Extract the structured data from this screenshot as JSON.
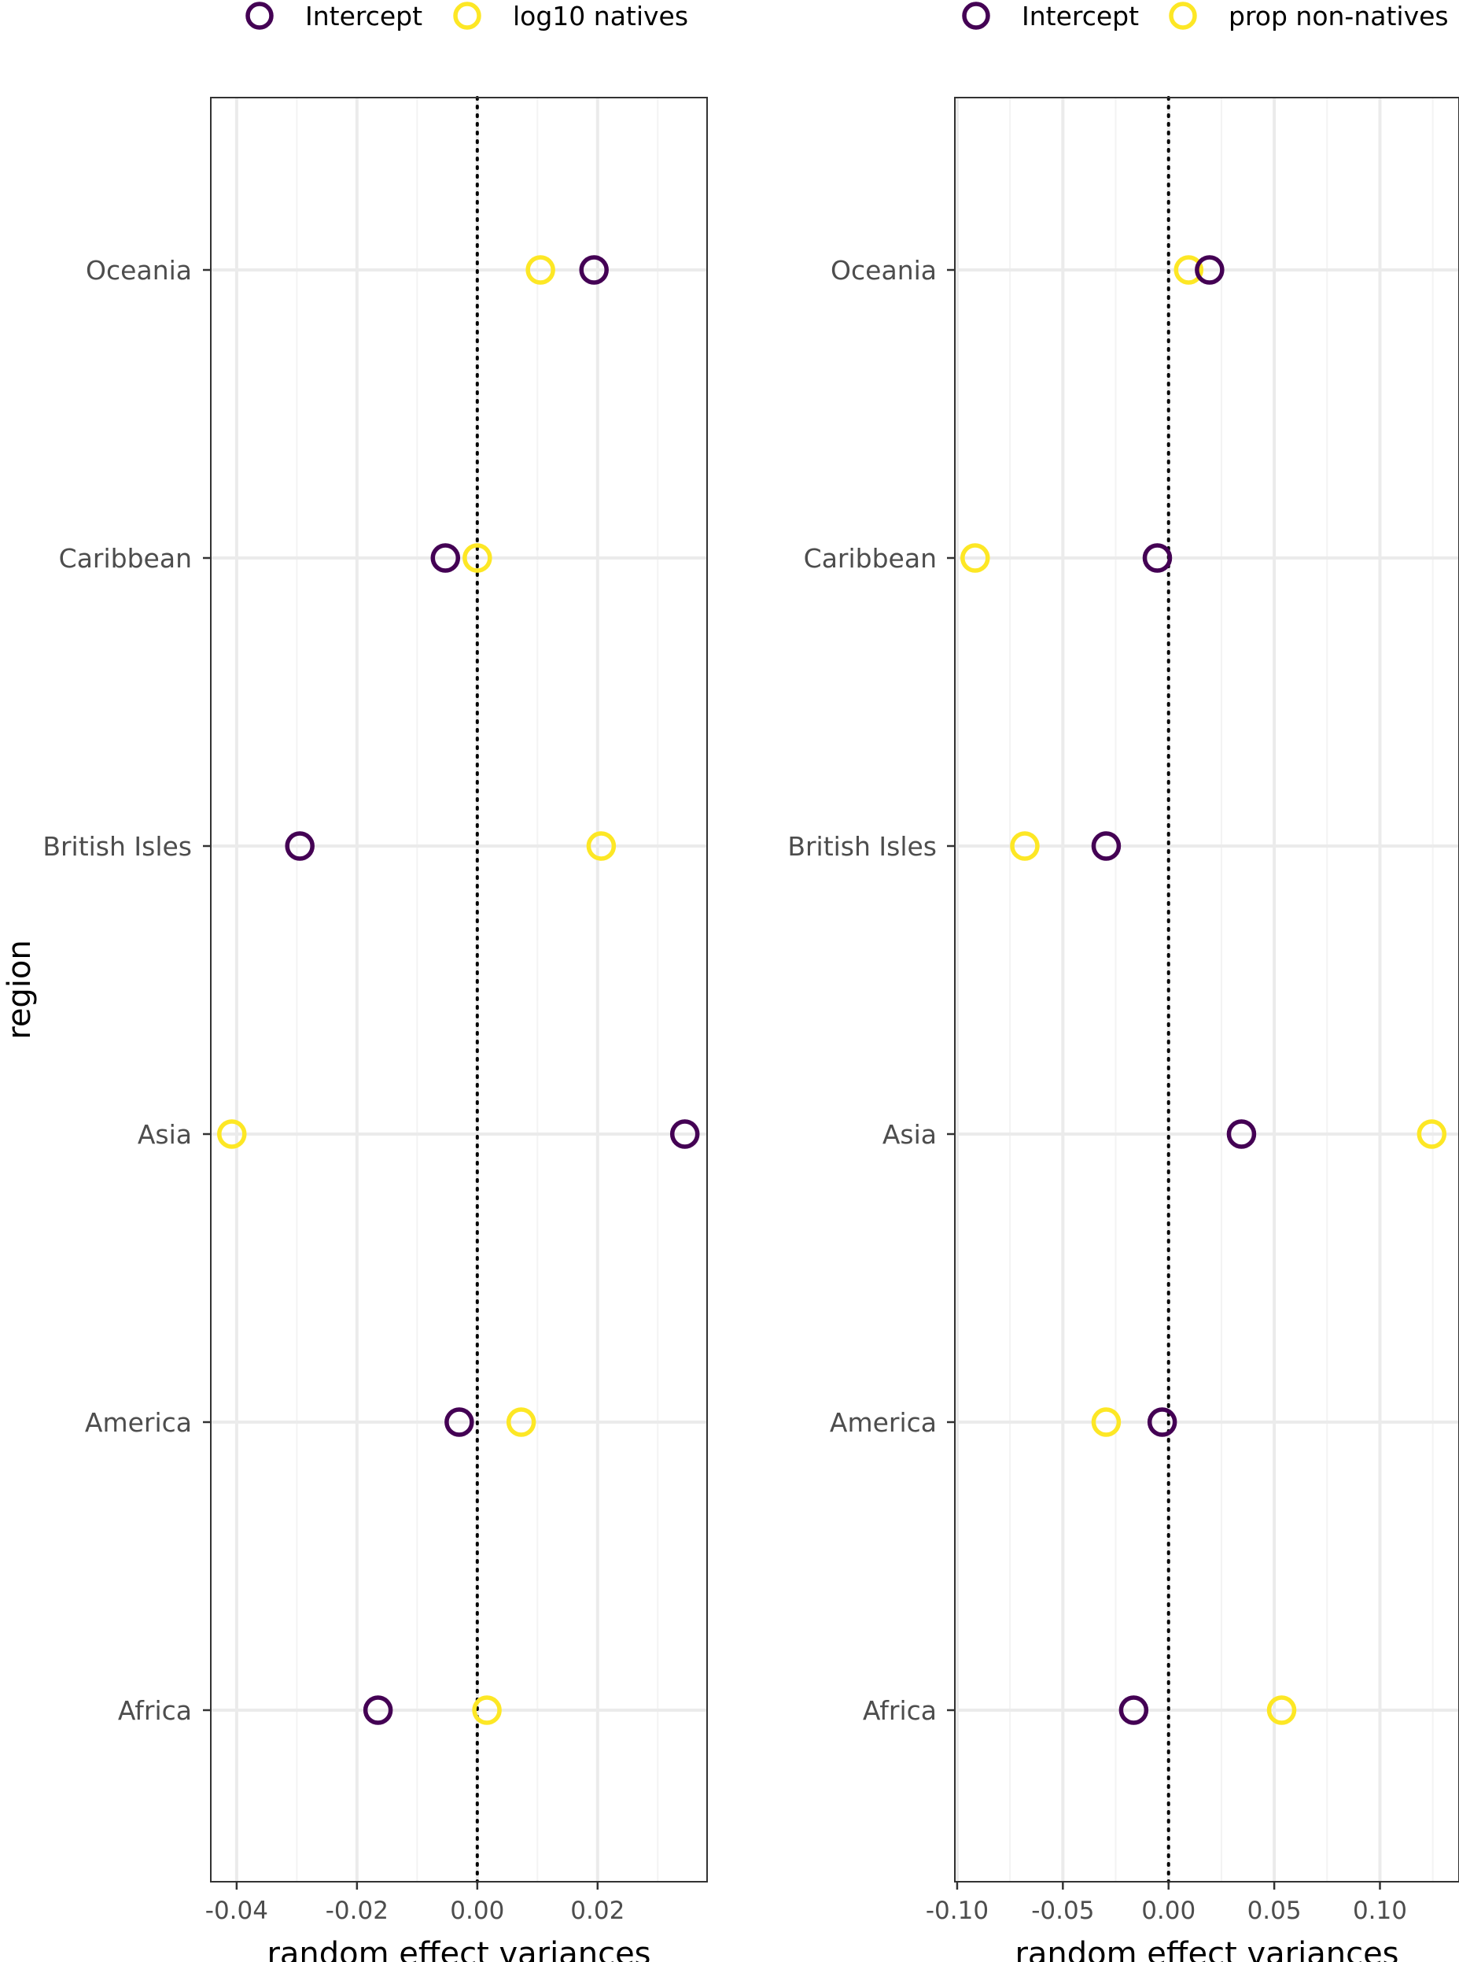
{
  "colors": {
    "intercept": "#440154",
    "slope": "#fde725",
    "grid_major": "#ebebeb",
    "grid_minor": "#f3f3f3",
    "axis_text": "#4d4d4d",
    "panel_border": "#333333"
  },
  "chart_data": [
    {
      "type": "scatter",
      "panel": "left",
      "ylabel": "region",
      "xlabel": "random effect variances",
      "categories": [
        "Africa",
        "America",
        "Asia",
        "British Isles",
        "Caribbean",
        "Oceania"
      ],
      "x_ticks": [
        -0.04,
        -0.02,
        0.0,
        0.02
      ],
      "x_tick_labels": [
        "-0.04",
        "-0.02",
        "0.00",
        "0.02"
      ],
      "x_minor_ticks": [
        -0.03,
        -0.01,
        0.01,
        0.03
      ],
      "xlim": [
        -0.0443,
        0.0382
      ],
      "reference_line_x": 0,
      "grid": true,
      "legend_position": "top",
      "series": [
        {
          "name": "Intercept",
          "color_key": "intercept",
          "values": [
            -0.0165,
            -0.003,
            0.0345,
            -0.0295,
            -0.0053,
            0.0194
          ]
        },
        {
          "name": "log10 natives",
          "color_key": "slope",
          "values": [
            0.0016,
            0.0073,
            -0.0408,
            0.0206,
            0.0,
            0.0105
          ]
        }
      ]
    },
    {
      "type": "scatter",
      "panel": "right",
      "ylabel": "",
      "xlabel": "random effect variances",
      "categories": [
        "Africa",
        "America",
        "Asia",
        "British Isles",
        "Caribbean",
        "Oceania"
      ],
      "x_ticks": [
        -0.1,
        -0.05,
        0.0,
        0.05,
        0.1
      ],
      "x_tick_labels": [
        "-0.10",
        "-0.05",
        "0.00",
        "0.05",
        "0.10"
      ],
      "x_minor_ticks": [
        -0.075,
        -0.025,
        0.025,
        0.075,
        0.125
      ],
      "xlim": [
        -0.1011,
        0.1374
      ],
      "reference_line_x": 0,
      "grid": true,
      "legend_position": "top",
      "series": [
        {
          "name": "Intercept",
          "color_key": "intercept",
          "values": [
            -0.0165,
            -0.003,
            0.0345,
            -0.0295,
            -0.0053,
            0.0194
          ]
        },
        {
          "name": "prop non-natives",
          "color_key": "slope",
          "values": [
            0.0535,
            -0.0295,
            0.1245,
            -0.068,
            -0.0915,
            0.0095
          ]
        }
      ]
    }
  ]
}
